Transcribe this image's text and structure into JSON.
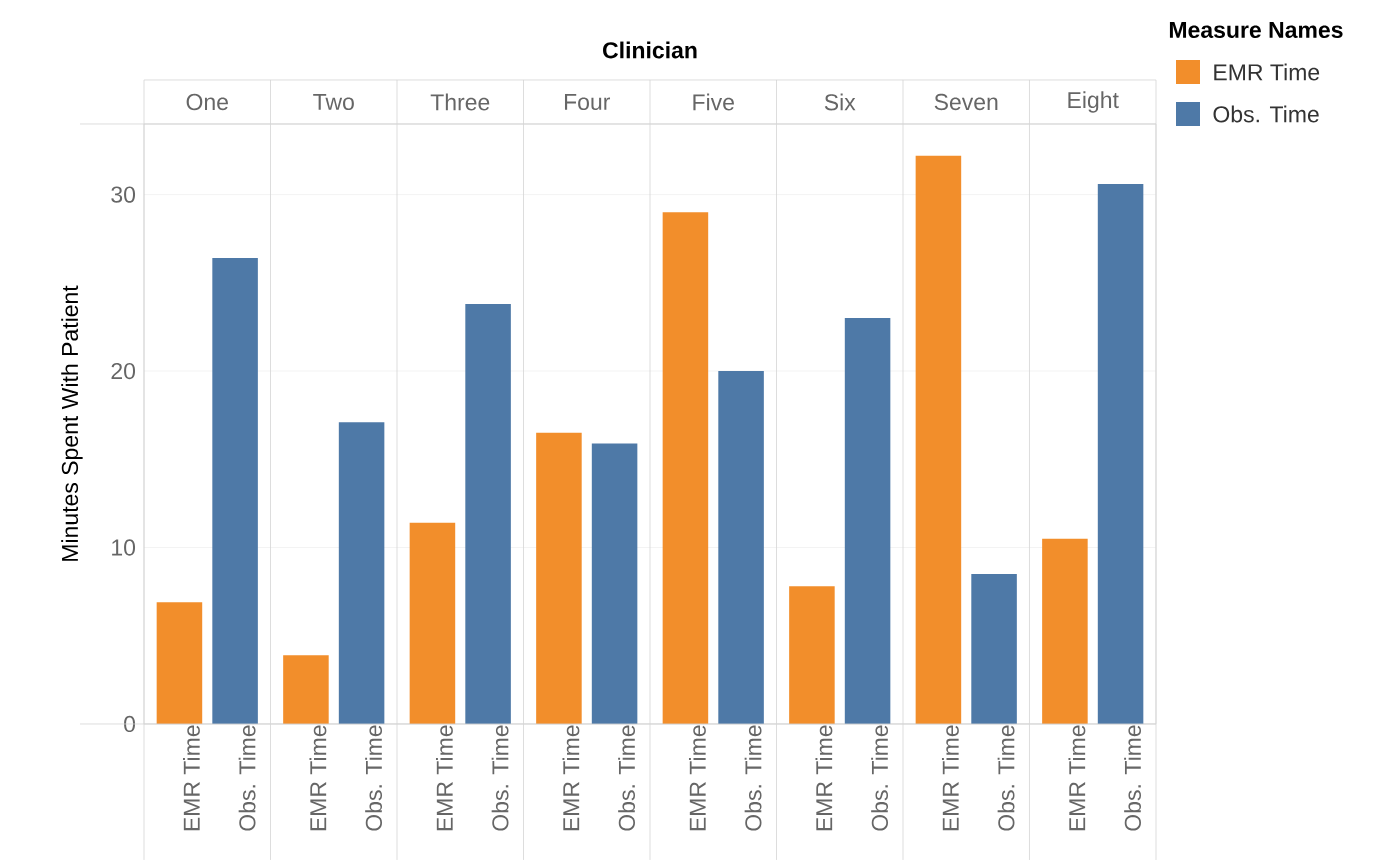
{
  "chart_data": {
    "type": "bar",
    "xlabel": "Clinician",
    "ylabel": "Minutes Spent With Patient",
    "legend_title": "Measure Names",
    "categories": [
      "One",
      "Two",
      "Three",
      "Four",
      "Five",
      "Six",
      "Seven",
      "Eight"
    ],
    "series": [
      {
        "name": "EMR Time",
        "color": "#f28e2b",
        "values": [
          6.9,
          3.9,
          11.4,
          16.5,
          29.0,
          7.8,
          32.2,
          10.5
        ]
      },
      {
        "name": "Obs. Time",
        "color": "#4e79a7",
        "values": [
          26.4,
          17.1,
          23.8,
          15.9,
          20.0,
          23.0,
          8.5,
          30.6
        ]
      }
    ],
    "ylim": [
      0,
      34
    ],
    "yticks": [
      0,
      10,
      20,
      30
    ],
    "grid": "y",
    "legend": "right"
  }
}
